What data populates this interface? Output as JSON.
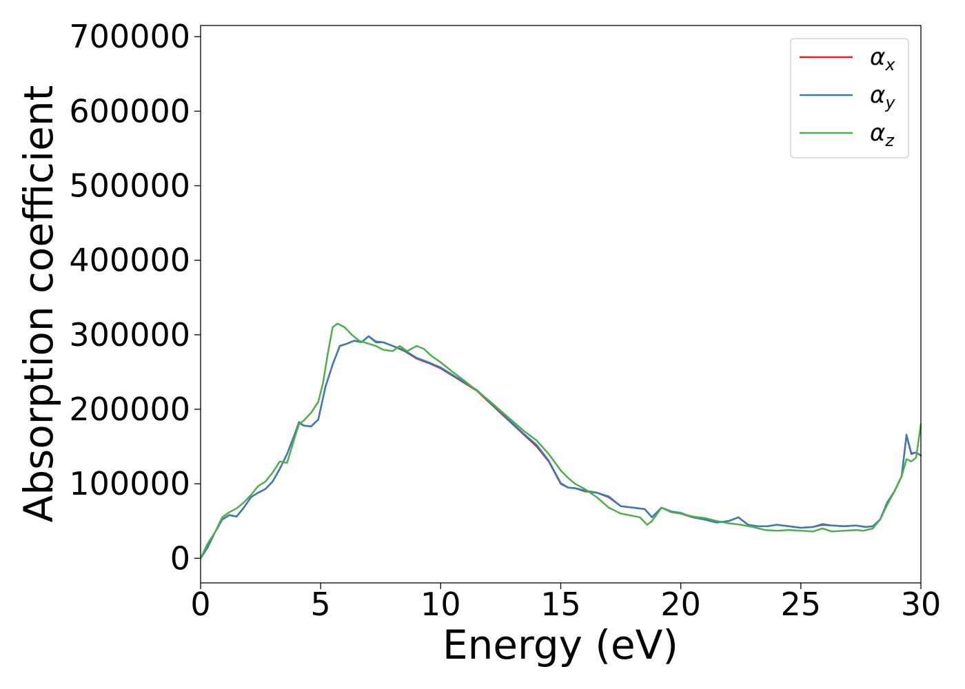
{
  "chart_data": {
    "type": "line",
    "xlabel": "Energy (eV)",
    "ylabel": "Absorption coefficient",
    "xlim": [
      0,
      30
    ],
    "ylim": [
      -33000,
      715000
    ],
    "xticks": [
      "0",
      "5",
      "10",
      "15",
      "20",
      "25",
      "30"
    ],
    "yticks": [
      "0",
      "100000",
      "200000",
      "300000",
      "400000",
      "500000",
      "600000",
      "700000"
    ],
    "grid": false,
    "legend_position": "top-right",
    "series": [
      {
        "name": "α",
        "sub": "x",
        "color": "#e41a1c",
        "x": [
          0,
          0.3,
          0.6,
          0.9,
          1.2,
          1.5,
          1.8,
          2.1,
          2.4,
          2.7,
          3.0,
          3.3,
          3.6,
          3.9,
          4.1,
          4.3,
          4.6,
          4.9,
          5.2,
          5.5,
          5.8,
          6.1,
          6.4,
          6.7,
          7.0,
          7.3,
          7.6,
          8.0,
          8.5,
          9.0,
          9.5,
          10.0,
          10.5,
          11.0,
          11.5,
          12.0,
          12.5,
          13.0,
          13.5,
          14.0,
          14.5,
          15.0,
          15.3,
          15.6,
          16.0,
          16.5,
          17.0,
          17.5,
          18.0,
          18.5,
          18.8,
          19.2,
          19.6,
          20.0,
          20.5,
          21.0,
          21.5,
          22.0,
          22.4,
          22.8,
          23.2,
          23.6,
          24.0,
          24.5,
          25.0,
          25.5,
          25.9,
          26.3,
          26.8,
          27.3,
          27.7,
          28.0,
          28.3,
          28.6,
          28.9,
          29.2,
          29.4,
          29.6,
          29.8,
          30.0
        ],
        "y": [
          0,
          15000,
          35000,
          52000,
          58000,
          56000,
          68000,
          82000,
          88000,
          93000,
          103000,
          120000,
          140000,
          165000,
          182000,
          178000,
          177000,
          186000,
          230000,
          260000,
          285000,
          288000,
          292000,
          290000,
          298000,
          290000,
          290000,
          285000,
          278000,
          268000,
          262000,
          255000,
          245000,
          235000,
          225000,
          210000,
          195000,
          180000,
          165000,
          150000,
          130000,
          100000,
          95000,
          94000,
          90000,
          88000,
          82000,
          70000,
          68000,
          66000,
          55000,
          68000,
          62000,
          60000,
          55000,
          52000,
          48000,
          50000,
          55000,
          45000,
          43000,
          43000,
          45000,
          43000,
          41000,
          42000,
          45000,
          44000,
          43000,
          44000,
          42000,
          43000,
          52000,
          75000,
          90000,
          110000,
          165000,
          140000,
          142000,
          138000
        ]
      },
      {
        "name": "α",
        "sub": "y",
        "color": "#377eb8",
        "x": [
          0,
          0.3,
          0.6,
          0.9,
          1.2,
          1.5,
          1.8,
          2.1,
          2.4,
          2.7,
          3.0,
          3.3,
          3.6,
          3.9,
          4.1,
          4.3,
          4.6,
          4.9,
          5.2,
          5.5,
          5.8,
          6.1,
          6.4,
          6.7,
          7.0,
          7.3,
          7.6,
          8.0,
          8.5,
          9.0,
          9.5,
          10.0,
          10.5,
          11.0,
          11.5,
          12.0,
          12.5,
          13.0,
          13.5,
          14.0,
          14.5,
          15.0,
          15.3,
          15.6,
          16.0,
          16.5,
          17.0,
          17.5,
          18.0,
          18.5,
          18.8,
          19.2,
          19.6,
          20.0,
          20.5,
          21.0,
          21.5,
          22.0,
          22.4,
          22.8,
          23.2,
          23.6,
          24.0,
          24.5,
          25.0,
          25.5,
          25.9,
          26.3,
          26.8,
          27.3,
          27.7,
          28.0,
          28.3,
          28.6,
          28.9,
          29.2,
          29.4,
          29.6,
          29.8,
          30.0
        ],
        "y": [
          0,
          15000,
          35000,
          52000,
          58000,
          56000,
          68000,
          82000,
          88000,
          93000,
          103000,
          120000,
          140000,
          165000,
          183000,
          178000,
          177000,
          186000,
          230000,
          260000,
          285000,
          288000,
          292000,
          290000,
          298000,
          291000,
          290000,
          285000,
          279000,
          269000,
          263000,
          256000,
          246000,
          236000,
          226000,
          211000,
          196000,
          181000,
          166000,
          152000,
          131000,
          101000,
          95000,
          94000,
          91000,
          88000,
          83000,
          70000,
          68000,
          66000,
          55000,
          68000,
          63000,
          61000,
          55000,
          52000,
          48000,
          50000,
          55000,
          45000,
          43000,
          43000,
          45000,
          43000,
          41000,
          42000,
          46000,
          44000,
          43000,
          44000,
          42000,
          43000,
          52000,
          75000,
          90000,
          110000,
          166000,
          141000,
          142000,
          138000
        ]
      },
      {
        "name": "α",
        "sub": "z",
        "color": "#4daf4a",
        "x": [
          0,
          0.3,
          0.6,
          0.9,
          1.2,
          1.5,
          1.8,
          2.1,
          2.4,
          2.7,
          3.0,
          3.3,
          3.6,
          3.9,
          4.1,
          4.3,
          4.6,
          4.9,
          5.1,
          5.3,
          5.5,
          5.7,
          6.0,
          6.3,
          6.6,
          7.0,
          7.3,
          7.6,
          8.0,
          8.3,
          8.6,
          9.0,
          9.3,
          9.6,
          10.0,
          10.5,
          11.0,
          11.5,
          12.0,
          12.5,
          13.0,
          13.5,
          14.0,
          14.5,
          15.0,
          15.3,
          15.6,
          16.0,
          16.5,
          17.0,
          17.5,
          18.0,
          18.3,
          18.6,
          18.8,
          19.2,
          19.6,
          20.0,
          20.5,
          21.0,
          21.5,
          22.0,
          22.5,
          23.0,
          23.5,
          24.0,
          24.5,
          25.0,
          25.5,
          25.9,
          26.3,
          26.8,
          27.3,
          27.6,
          28.0,
          28.3,
          28.6,
          28.9,
          29.2,
          29.4,
          29.6,
          29.8,
          30.0
        ],
        "y": [
          0,
          20000,
          35000,
          55000,
          62000,
          67000,
          75000,
          85000,
          97000,
          103000,
          115000,
          130000,
          128000,
          160000,
          180000,
          185000,
          195000,
          210000,
          235000,
          275000,
          310000,
          315000,
          310000,
          300000,
          292000,
          288000,
          285000,
          280000,
          278000,
          285000,
          278000,
          285000,
          281000,
          272000,
          263000,
          250000,
          238000,
          225000,
          212000,
          198000,
          184000,
          170000,
          158000,
          140000,
          118000,
          108000,
          100000,
          93000,
          82000,
          68000,
          60000,
          57000,
          55000,
          45000,
          50000,
          68000,
          62000,
          60000,
          56000,
          54000,
          50000,
          47000,
          45000,
          42000,
          38000,
          37000,
          38000,
          37000,
          36000,
          40000,
          36000,
          37000,
          38000,
          37000,
          40000,
          52000,
          72000,
          90000,
          110000,
          133000,
          130000,
          135000,
          180000
        ]
      }
    ]
  }
}
